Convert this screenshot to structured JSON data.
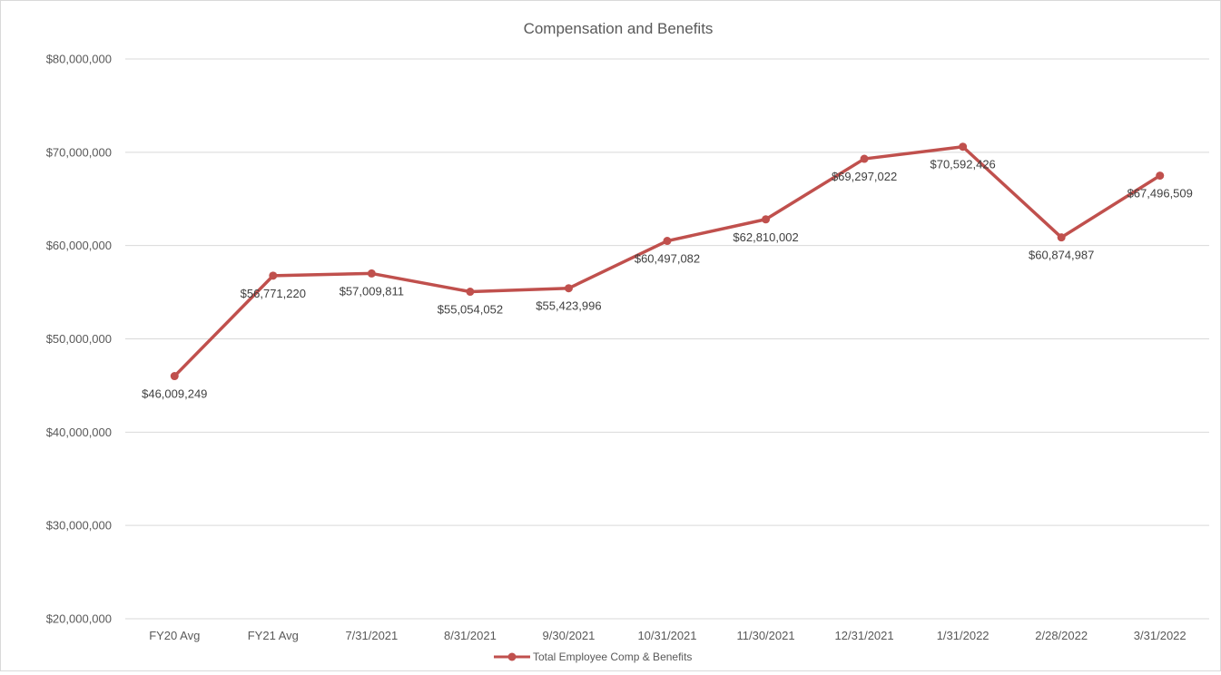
{
  "chart_data": {
    "type": "line",
    "title": "Compensation and Benefits",
    "xlabel": "",
    "ylabel": "",
    "ylim": [
      20000000,
      80000000
    ],
    "y_ticks": [
      "$20,000,000",
      "$30,000,000",
      "$40,000,000",
      "$50,000,000",
      "$60,000,000",
      "$70,000,000",
      "$80,000,000"
    ],
    "y_tick_values": [
      20000000,
      30000000,
      40000000,
      50000000,
      60000000,
      70000000,
      80000000
    ],
    "grid": true,
    "legend_position": "bottom",
    "categories": [
      "FY20 Avg",
      "FY21 Avg",
      "7/31/2021",
      "8/31/2021",
      "9/30/2021",
      "10/31/2021",
      "11/30/2021",
      "12/31/2021",
      "1/31/2022",
      "2/28/2022",
      "3/31/2022"
    ],
    "series": [
      {
        "name": "Total Employee Comp & Benefits",
        "color": "#c0504d",
        "values": [
          46009249,
          56771220,
          57009811,
          55054052,
          55423996,
          60497082,
          62810002,
          69297022,
          70592426,
          60874987,
          67496509
        ],
        "data_labels": [
          "$46,009,249",
          "$56,771,220",
          "$57,009,811",
          "$55,054,052",
          "$55,423,996",
          "$60,497,082",
          "$62,810,002",
          "$69,297,022",
          "$70,592,426",
          "$60,874,987",
          "$67,496,509"
        ]
      }
    ]
  }
}
